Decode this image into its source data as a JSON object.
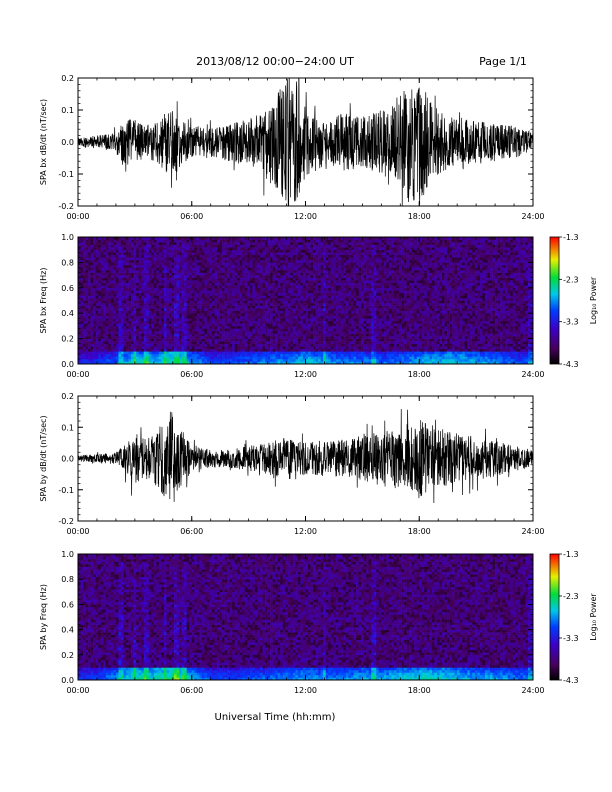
{
  "header": {
    "title": "2013/08/12  00:00−24:00 UT",
    "page": "Page 1/1"
  },
  "xlabel": "Universal Time (hh:mm)",
  "chart_data": [
    {
      "type": "line",
      "ylabel": "SPA bx dB/dt (nT/sec)",
      "xlim": [
        "00:00",
        "24:00"
      ],
      "ylim": [
        -0.2,
        0.2
      ],
      "xticks": [
        "00:00",
        "06:00",
        "12:00",
        "18:00",
        "24:00"
      ],
      "yticks": [
        "-0.2",
        "-0.1",
        "0.0",
        "0.1",
        "0.2"
      ],
      "color": "#000000",
      "envelope": {
        "hours": [
          0,
          1,
          2,
          2.5,
          3,
          3.5,
          4,
          4.5,
          5,
          5.5,
          6,
          7,
          8,
          9,
          9.5,
          10,
          10.5,
          11,
          11.5,
          12,
          13,
          13.5,
          14,
          15,
          16,
          16.5,
          17,
          17.5,
          18,
          18.5,
          19,
          20,
          21,
          22,
          23,
          24
        ],
        "amplitude": [
          0.015,
          0.02,
          0.03,
          0.08,
          0.07,
          0.05,
          0.06,
          0.09,
          0.11,
          0.07,
          0.05,
          0.05,
          0.06,
          0.07,
          0.09,
          0.12,
          0.15,
          0.2,
          0.2,
          0.12,
          0.07,
          0.08,
          0.09,
          0.08,
          0.1,
          0.12,
          0.15,
          0.2,
          0.2,
          0.14,
          0.1,
          0.07,
          0.07,
          0.06,
          0.05,
          0.03
        ]
      }
    },
    {
      "type": "heatmap",
      "ylabel": "SPA bx Freq (Hz)",
      "xlim": [
        "00:00",
        "24:00"
      ],
      "ylim": [
        0.0,
        1.0
      ],
      "xticks": [
        "00:00",
        "06:00",
        "12:00",
        "18:00",
        "24:00"
      ],
      "yticks": [
        "0.0",
        "0.2",
        "0.4",
        "0.6",
        "0.8",
        "1.0"
      ],
      "colorbar": {
        "label": "Log₁₀ Power",
        "range": [
          -4.3,
          -1.3
        ],
        "ticks": [
          "-1.3",
          "-2.3",
          "-3.3",
          "-4.3"
        ]
      },
      "low_freq_band_power": {
        "hours": [
          0,
          1,
          2,
          3,
          4,
          5,
          6,
          7,
          8,
          9,
          10,
          11,
          12,
          13,
          14,
          15,
          16,
          17,
          18,
          19,
          20,
          21,
          22,
          23,
          24
        ],
        "level": [
          -3.6,
          -3.5,
          -3.3,
          -2.9,
          -3.0,
          -2.8,
          -3.1,
          -3.4,
          -3.4,
          -3.3,
          -3.2,
          -3.1,
          -3.0,
          -3.1,
          -3.2,
          -3.2,
          -3.3,
          -3.2,
          -3.1,
          -3.0,
          -3.0,
          -3.1,
          -3.2,
          -3.3,
          -3.4
        ]
      }
    },
    {
      "type": "line",
      "ylabel": "SPA by dB/dt (nT/sec)",
      "xlim": [
        "00:00",
        "24:00"
      ],
      "ylim": [
        -0.2,
        0.2
      ],
      "xticks": [
        "00:00",
        "06:00",
        "12:00",
        "18:00",
        "24:00"
      ],
      "yticks": [
        "-0.2",
        "-0.1",
        "0.0",
        "0.1",
        "0.2"
      ],
      "color": "#000000",
      "envelope": {
        "hours": [
          0,
          1,
          2,
          2.5,
          3,
          3.5,
          4,
          4.5,
          5,
          5.5,
          6,
          7,
          8,
          9,
          10,
          11,
          12,
          13,
          14,
          15,
          16,
          17,
          17.5,
          18,
          18.5,
          19,
          20,
          21,
          22,
          23,
          24
        ],
        "amplitude": [
          0.01,
          0.015,
          0.02,
          0.05,
          0.09,
          0.06,
          0.08,
          0.12,
          0.16,
          0.09,
          0.04,
          0.03,
          0.03,
          0.04,
          0.05,
          0.07,
          0.05,
          0.06,
          0.06,
          0.07,
          0.09,
          0.1,
          0.12,
          0.13,
          0.11,
          0.1,
          0.08,
          0.07,
          0.06,
          0.04,
          0.03
        ]
      }
    },
    {
      "type": "heatmap",
      "ylabel": "SPA by Freq (Hz)",
      "xlim": [
        "00:00",
        "24:00"
      ],
      "ylim": [
        0.0,
        1.0
      ],
      "xticks": [
        "00:00",
        "06:00",
        "12:00",
        "18:00",
        "24:00"
      ],
      "yticks": [
        "0.0",
        "0.2",
        "0.4",
        "0.6",
        "0.8",
        "1.0"
      ],
      "colorbar": {
        "label": "Log₁₀ Power",
        "range": [
          -4.3,
          -1.3
        ],
        "ticks": [
          "-1.3",
          "-2.3",
          "-3.3",
          "-4.3"
        ]
      },
      "low_freq_band_power": {
        "hours": [
          0,
          1,
          2,
          3,
          4,
          5,
          6,
          7,
          8,
          9,
          10,
          11,
          12,
          13,
          14,
          15,
          16,
          17,
          18,
          19,
          20,
          21,
          22,
          23,
          24
        ],
        "level": [
          -3.5,
          -3.4,
          -3.2,
          -2.8,
          -2.9,
          -2.7,
          -3.0,
          -3.4,
          -3.4,
          -3.3,
          -3.3,
          -3.2,
          -3.1,
          -3.2,
          -3.2,
          -3.1,
          -3.1,
          -3.0,
          -2.9,
          -2.9,
          -3.0,
          -3.1,
          -3.1,
          -3.2,
          -3.3
        ]
      }
    }
  ]
}
